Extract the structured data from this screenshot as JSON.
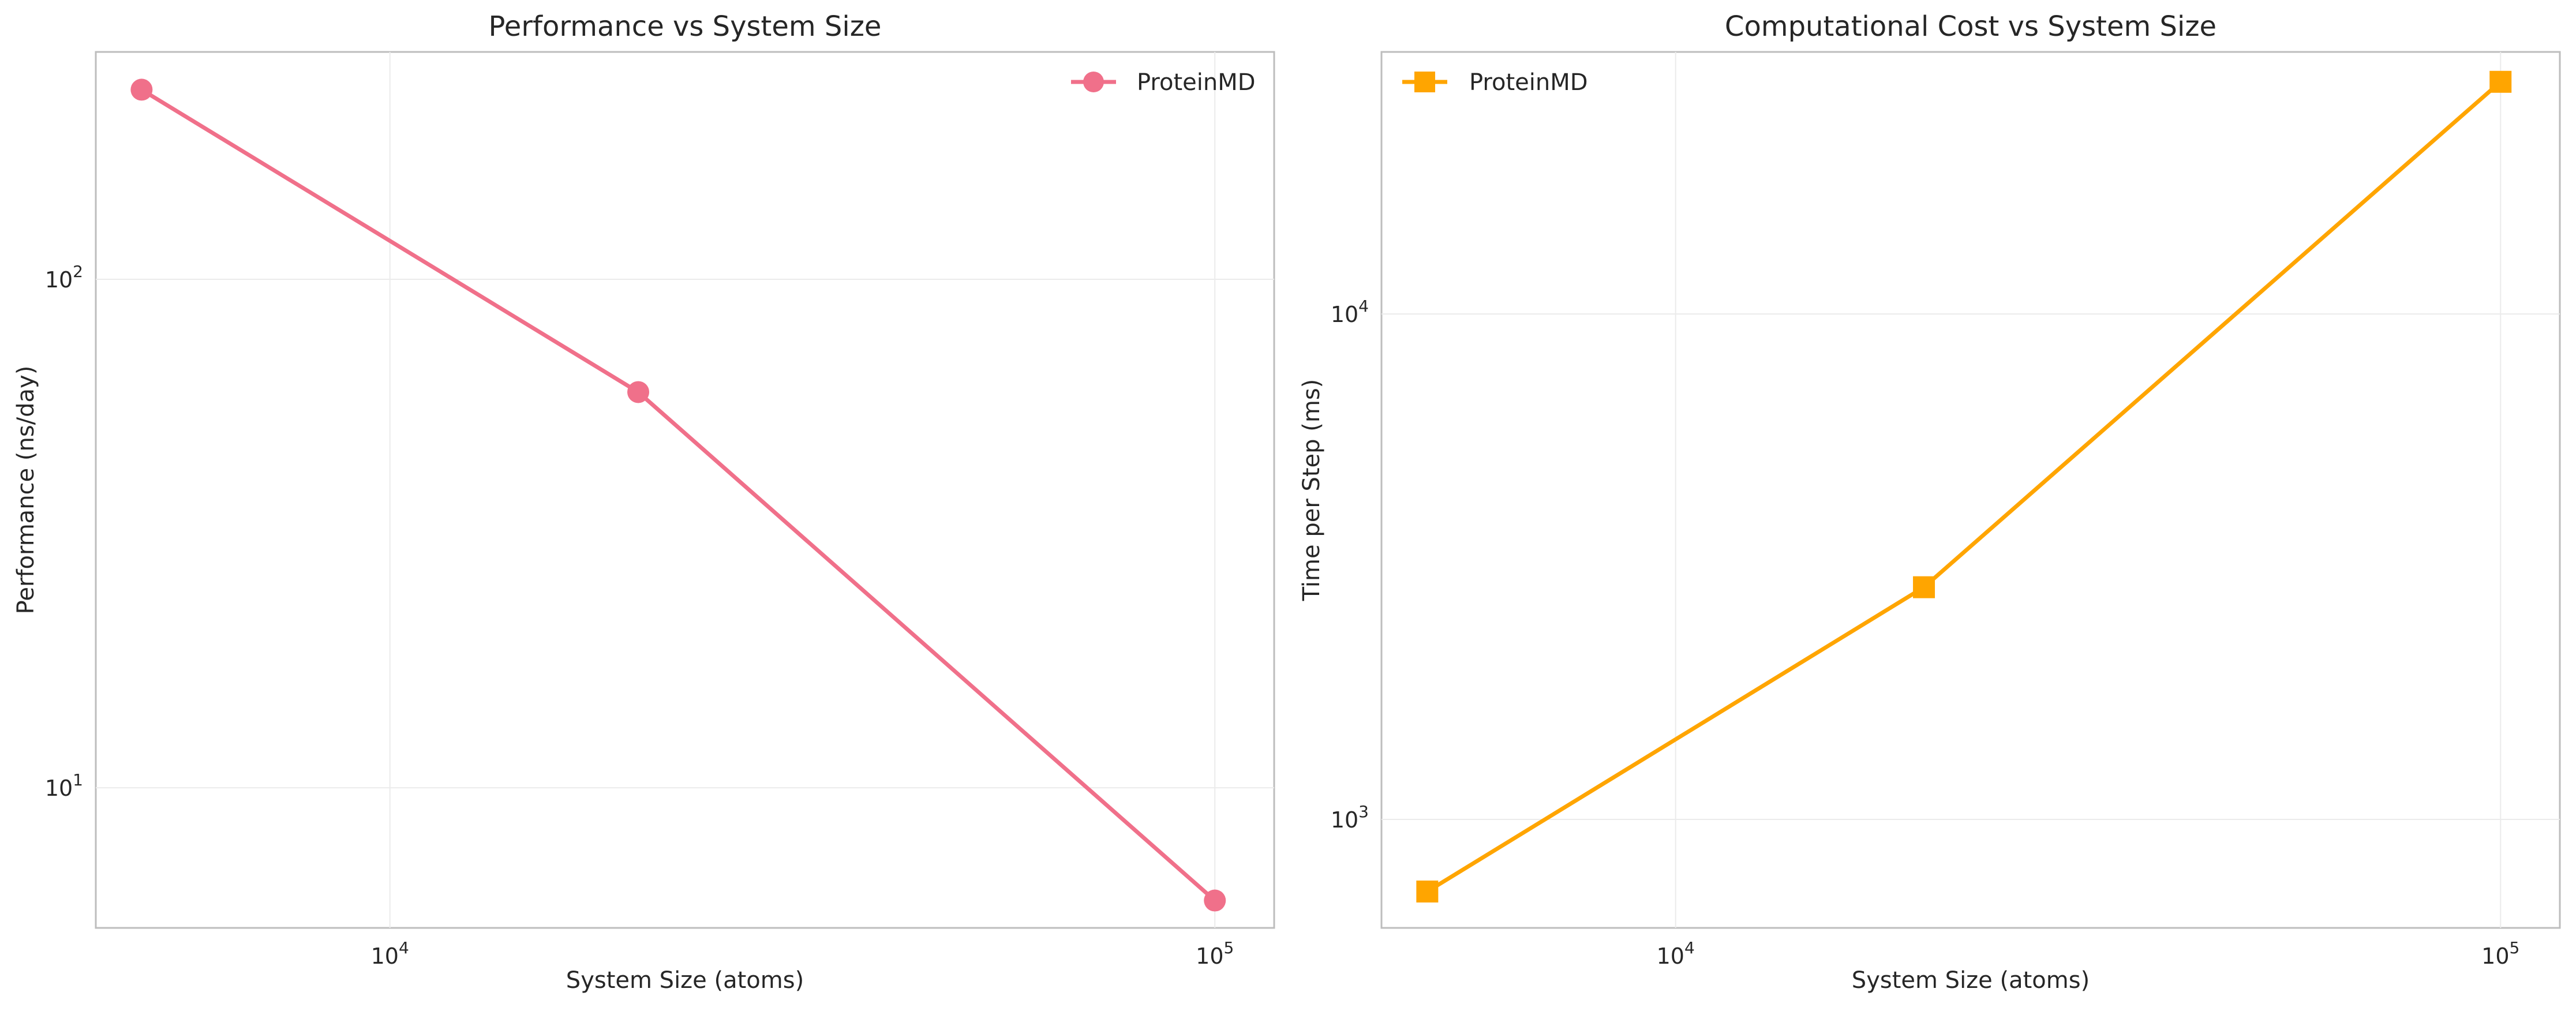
{
  "chart_data": [
    {
      "type": "line",
      "title": "Performance vs System Size",
      "xlabel": "System Size (atoms)",
      "ylabel": "Performance (ns/day)",
      "xscale": "log",
      "yscale": "log",
      "xlim": [
        4400,
        118000
      ],
      "ylim": [
        5.3,
        280
      ],
      "x_ticks": [
        {
          "value": 10000,
          "base": "10",
          "exp": "4"
        },
        {
          "value": 100000,
          "base": "10",
          "exp": "5"
        }
      ],
      "y_ticks": [
        {
          "value": 10,
          "base": "10",
          "exp": "1"
        },
        {
          "value": 100,
          "base": "10",
          "exp": "2"
        }
      ],
      "grid": true,
      "legend_position": "upper right",
      "series": [
        {
          "name": "ProteinMD",
          "color": "#f0708a",
          "marker": "circle",
          "x": [
            5000,
            20000,
            100000
          ],
          "y": [
            236,
            60,
            6
          ]
        }
      ]
    },
    {
      "type": "line",
      "title": "Computational Cost vs System Size",
      "xlabel": "System Size (atoms)",
      "ylabel": "Time per Step (ms)",
      "xscale": "log",
      "yscale": "log",
      "xlim": [
        4400,
        118000
      ],
      "ylim": [
        610,
        33000
      ],
      "x_ticks": [
        {
          "value": 10000,
          "base": "10",
          "exp": "4"
        },
        {
          "value": 100000,
          "base": "10",
          "exp": "5"
        }
      ],
      "y_ticks": [
        {
          "value": 1000,
          "base": "10",
          "exp": "3"
        },
        {
          "value": 10000,
          "base": "10",
          "exp": "4"
        }
      ],
      "grid": true,
      "legend_position": "upper left",
      "series": [
        {
          "name": "ProteinMD",
          "color": "#ffa500",
          "marker": "square",
          "x": [
            5000,
            20000,
            100000
          ],
          "y": [
            720,
            2880,
            28800
          ]
        }
      ]
    }
  ]
}
